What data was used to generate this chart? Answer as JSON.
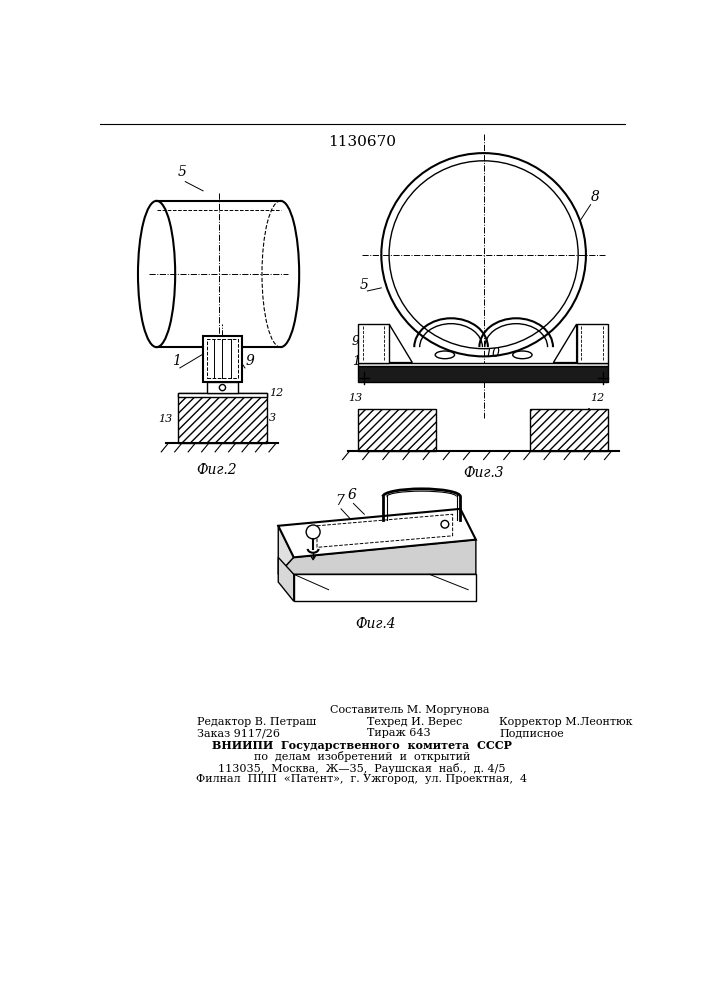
{
  "title": "1130670",
  "fig2_label": "Фиг.2",
  "fig3_label": "Фиг.3",
  "fig4_label": "Фиг.4",
  "bg_color": "#ffffff",
  "line_color": "#000000",
  "footer_line1": "Составитель М. Моргунова",
  "footer_line2_left": "Редактор В. Петраш",
  "footer_line2_mid": "Техред И. Верес",
  "footer_line2_right": "Корректор М.Леонтюк",
  "footer_line3_left": "Заказ 9117/26",
  "footer_line3_mid": "Тираж 643",
  "footer_line3_right": "Подписное",
  "footer_line4": "ВНИИПИ  Государственного  комитета  СССР",
  "footer_line5": "по  делам  изобретений  и  открытий",
  "footer_line6": "113035,  Москва,  Ж—35,  Раушская  наб.,  д. 4/5",
  "footer_line7": "Филнал  ППП  «Патент»,  г. Ужгород,  ул. Проектная,  4"
}
